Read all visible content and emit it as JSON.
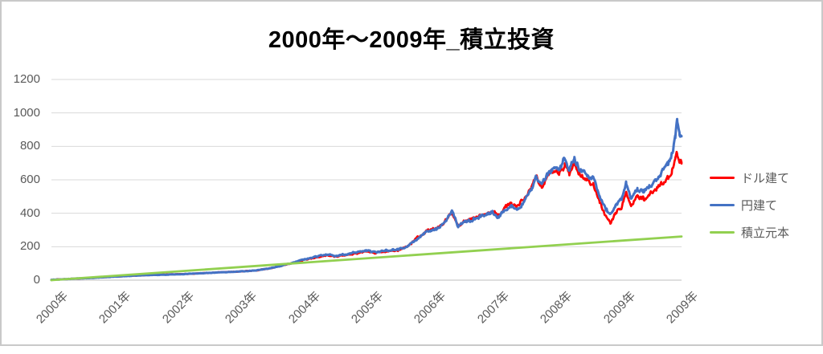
{
  "page": {
    "background": "#ffffff",
    "border_color": "#c9c9c9"
  },
  "chart_data": {
    "type": "line",
    "title": "2000年～2009年_積立投資",
    "x_axis": {
      "tick_labels": [
        "2000年",
        "2001年",
        "2002年",
        "2003年",
        "2004年",
        "2005年",
        "2006年",
        "2007年",
        "2008年",
        "2009年",
        "2009年"
      ],
      "range_years": [
        2000,
        2010
      ],
      "tick_label_rotation_deg": 45
    },
    "y_axis": {
      "ticks": [
        0,
        200,
        400,
        600,
        800,
        1000,
        1200
      ],
      "range": [
        0,
        1200
      ],
      "gridline_color": "#d9d9d9",
      "axis_line_color": "#bfbfbf"
    },
    "grid": {
      "horizontal": true
    },
    "text_color": "#595959",
    "legend": {
      "position": "right"
    },
    "series": [
      {
        "name": "ドル建て",
        "color": "#ff0000",
        "anchors": [
          [
            0,
            2
          ],
          [
            0.3,
            7
          ],
          [
            0.6,
            13
          ],
          [
            0.9,
            19
          ],
          [
            1.2,
            25
          ],
          [
            1.5,
            30
          ],
          [
            1.8,
            33
          ],
          [
            2.1,
            36
          ],
          [
            2.4,
            41
          ],
          [
            2.7,
            47
          ],
          [
            3,
            52
          ],
          [
            3.25,
            57
          ],
          [
            3.5,
            72
          ],
          [
            3.75,
            95
          ],
          [
            4,
            120
          ],
          [
            4.2,
            137
          ],
          [
            4.35,
            148
          ],
          [
            4.5,
            143
          ],
          [
            4.65,
            149
          ],
          [
            4.8,
            158
          ],
          [
            5,
            172
          ],
          [
            5.15,
            164
          ],
          [
            5.3,
            175
          ],
          [
            5.5,
            181
          ],
          [
            5.65,
            207
          ],
          [
            5.8,
            250
          ],
          [
            5.95,
            292
          ],
          [
            6.1,
            315
          ],
          [
            6.25,
            350
          ],
          [
            6.36,
            408
          ],
          [
            6.45,
            322
          ],
          [
            6.55,
            350
          ],
          [
            6.7,
            368
          ],
          [
            6.85,
            392
          ],
          [
            7,
            415
          ],
          [
            7.1,
            390
          ],
          [
            7.2,
            432
          ],
          [
            7.3,
            462
          ],
          [
            7.4,
            448
          ],
          [
            7.5,
            480
          ],
          [
            7.62,
            570
          ],
          [
            7.7,
            610
          ],
          [
            7.78,
            558
          ],
          [
            7.88,
            628
          ],
          [
            7.95,
            660
          ],
          [
            8.05,
            635
          ],
          [
            8.15,
            700
          ],
          [
            8.22,
            640
          ],
          [
            8.3,
            700
          ],
          [
            8.4,
            635
          ],
          [
            8.5,
            615
          ],
          [
            8.6,
            580
          ],
          [
            8.7,
            470
          ],
          [
            8.8,
            385
          ],
          [
            8.87,
            348
          ],
          [
            8.95,
            400
          ],
          [
            9.05,
            440
          ],
          [
            9.12,
            525
          ],
          [
            9.2,
            440
          ],
          [
            9.3,
            495
          ],
          [
            9.4,
            480
          ],
          [
            9.5,
            515
          ],
          [
            9.6,
            545
          ],
          [
            9.7,
            580
          ],
          [
            9.78,
            620
          ],
          [
            9.85,
            670
          ],
          [
            9.9,
            730
          ],
          [
            9.93,
            770
          ],
          [
            9.97,
            720
          ],
          [
            10,
            700
          ]
        ]
      },
      {
        "name": "円建て",
        "color": "#4472c4",
        "anchors": [
          [
            0,
            2
          ],
          [
            0.3,
            7
          ],
          [
            0.6,
            13
          ],
          [
            0.9,
            19
          ],
          [
            1.2,
            25
          ],
          [
            1.5,
            30
          ],
          [
            1.8,
            33
          ],
          [
            2.1,
            36
          ],
          [
            2.4,
            41
          ],
          [
            2.7,
            47
          ],
          [
            3,
            52
          ],
          [
            3.25,
            57
          ],
          [
            3.5,
            72
          ],
          [
            3.75,
            95
          ],
          [
            4,
            122
          ],
          [
            4.2,
            140
          ],
          [
            4.35,
            152
          ],
          [
            4.5,
            147
          ],
          [
            4.65,
            153
          ],
          [
            4.8,
            162
          ],
          [
            5,
            176
          ],
          [
            5.15,
            168
          ],
          [
            5.3,
            178
          ],
          [
            5.5,
            184
          ],
          [
            5.65,
            205
          ],
          [
            5.8,
            245
          ],
          [
            5.95,
            290
          ],
          [
            6.1,
            310
          ],
          [
            6.25,
            345
          ],
          [
            6.36,
            415
          ],
          [
            6.45,
            318
          ],
          [
            6.55,
            345
          ],
          [
            6.7,
            362
          ],
          [
            6.85,
            385
          ],
          [
            7,
            405
          ],
          [
            7.1,
            378
          ],
          [
            7.2,
            420
          ],
          [
            7.3,
            450
          ],
          [
            7.4,
            435
          ],
          [
            7.5,
            470
          ],
          [
            7.62,
            560
          ],
          [
            7.7,
            615
          ],
          [
            7.78,
            565
          ],
          [
            7.88,
            640
          ],
          [
            7.95,
            680
          ],
          [
            8.05,
            660
          ],
          [
            8.15,
            725
          ],
          [
            8.22,
            665
          ],
          [
            8.3,
            730
          ],
          [
            8.4,
            660
          ],
          [
            8.5,
            640
          ],
          [
            8.6,
            610
          ],
          [
            8.7,
            500
          ],
          [
            8.8,
            420
          ],
          [
            8.87,
            385
          ],
          [
            8.95,
            440
          ],
          [
            9.05,
            480
          ],
          [
            9.12,
            590
          ],
          [
            9.2,
            485
          ],
          [
            9.3,
            545
          ],
          [
            9.4,
            530
          ],
          [
            9.5,
            575
          ],
          [
            9.6,
            610
          ],
          [
            9.7,
            655
          ],
          [
            9.78,
            700
          ],
          [
            9.85,
            760
          ],
          [
            9.9,
            840
          ],
          [
            9.93,
            960
          ],
          [
            9.97,
            870
          ],
          [
            10,
            835
          ]
        ]
      },
      {
        "name": "積立元本",
        "color": "#92d050",
        "anchors": [
          [
            0,
            0
          ],
          [
            10,
            261
          ]
        ]
      }
    ]
  }
}
